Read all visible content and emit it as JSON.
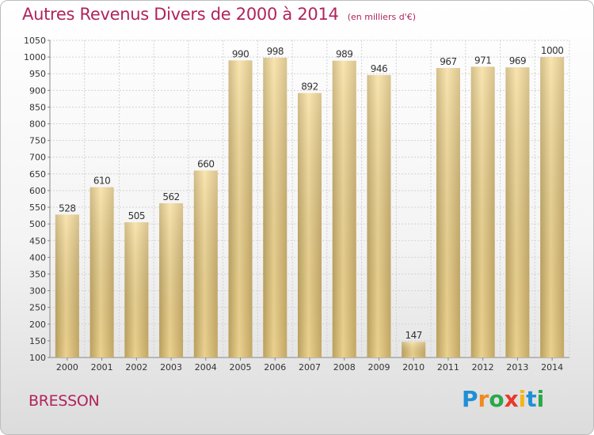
{
  "title": "Autres Revenus Divers de 2000 à 2014",
  "unit_note": "(en milliers d'€)",
  "location": "BRESSON",
  "logo_text": "Proxiti",
  "colors": {
    "title": "#b0245c",
    "bar_light": "#f7dc96",
    "bar_dark": "#c4a963",
    "grid": "#cccccc"
  },
  "chart_data": {
    "type": "bar",
    "title": "Autres Revenus Divers de 2000 à 2014",
    "subtitle": "(en milliers d'€)",
    "categories": [
      "2000",
      "2001",
      "2002",
      "2003",
      "2004",
      "2005",
      "2006",
      "2007",
      "2008",
      "2009",
      "2010",
      "2011",
      "2012",
      "2013",
      "2014"
    ],
    "values": [
      528,
      610,
      505,
      562,
      660,
      990,
      998,
      892,
      989,
      946,
      147,
      967,
      971,
      969,
      1000
    ],
    "ylim": [
      100,
      1050
    ],
    "yticks": [
      100,
      150,
      200,
      250,
      300,
      350,
      400,
      450,
      500,
      550,
      600,
      650,
      700,
      750,
      800,
      850,
      900,
      950,
      1000,
      1050
    ],
    "grid": true,
    "xlabel": "",
    "ylabel": ""
  }
}
